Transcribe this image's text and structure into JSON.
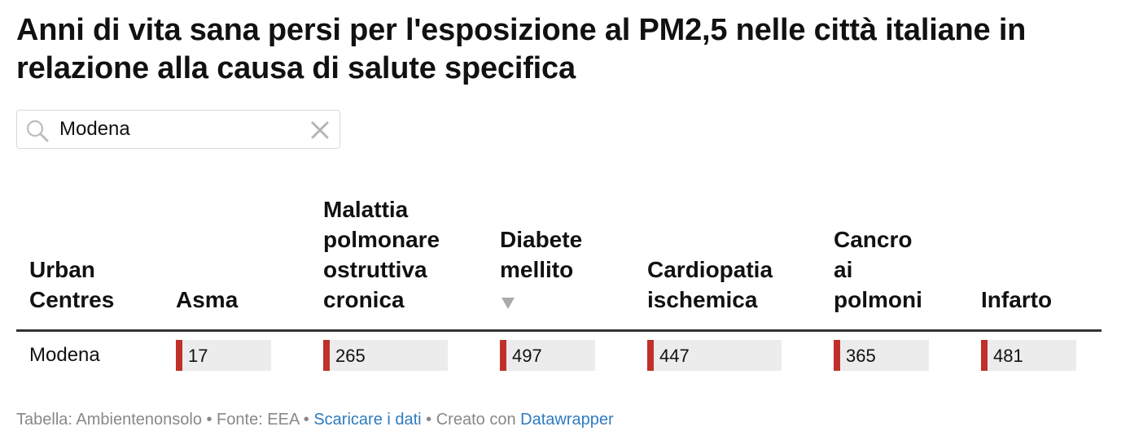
{
  "title": "Anni di vita sana persi per l'esposizione al PM2,5 nelle città italiane in relazione alla causa di salute specifica",
  "search": {
    "value": "Modena",
    "icon": "search-icon",
    "clear_icon": "close-icon"
  },
  "columns": [
    {
      "label": "Urban\nCentres"
    },
    {
      "label": "Asma"
    },
    {
      "label": "Malattia\npolmonare\nostruttiva\ncronica"
    },
    {
      "label": "Diabete\nmellito",
      "sort": "descending"
    },
    {
      "label": "Cardiopatia\nischemica"
    },
    {
      "label": "Cancro\nai\npolmoni"
    },
    {
      "label": "Infarto"
    }
  ],
  "rows": [
    {
      "name": "Modena",
      "values": [
        "17",
        "265",
        "497",
        "447",
        "365",
        "481"
      ]
    }
  ],
  "colors": {
    "bar": "#c0302b",
    "track": "#ececec",
    "link": "#2f7bbf",
    "footer_text": "#888888"
  },
  "footer": {
    "prefix": "Tabella: Ambientenonsolo • Fonte: EEA • ",
    "download_link": "Scaricare i dati",
    "middle": " • Creato con ",
    "tool_link": "Datawrapper"
  }
}
